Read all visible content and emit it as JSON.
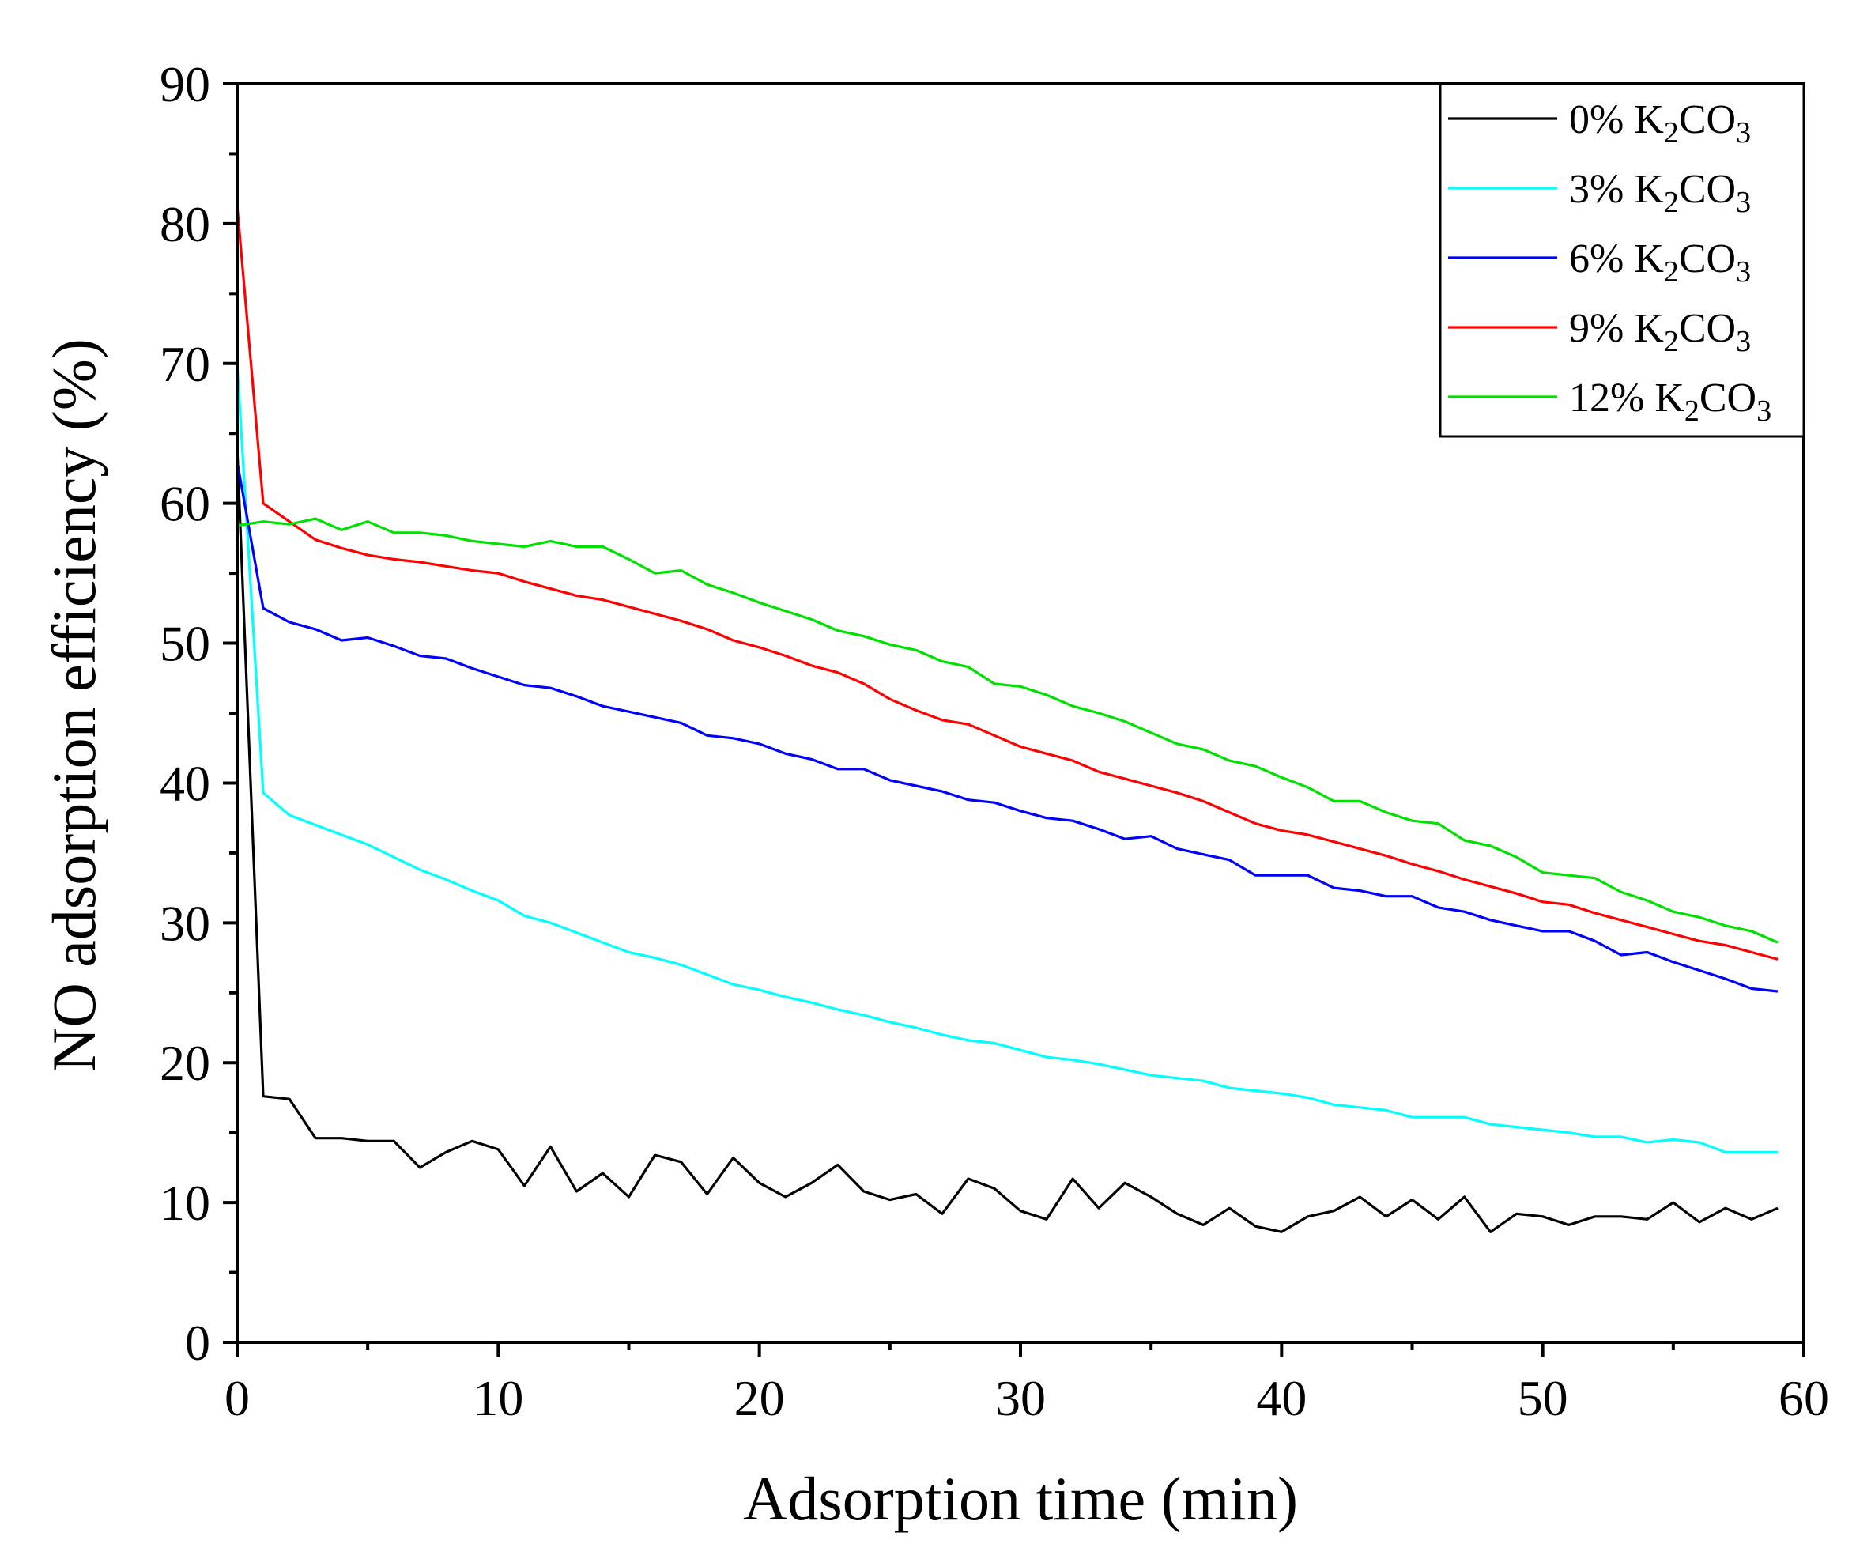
{
  "chart_data": {
    "type": "line",
    "title": "",
    "xlabel": "Adsorption time (min)",
    "ylabel": "NO adsorption efficiency (%)",
    "xlim": [
      0,
      60
    ],
    "ylim": [
      0,
      90
    ],
    "xticks": [
      0,
      10,
      20,
      30,
      40,
      50,
      60
    ],
    "yticks": [
      0,
      10,
      20,
      30,
      40,
      50,
      60,
      70,
      80,
      90
    ],
    "grid": false,
    "legend_position": "top-right",
    "x": [
      0,
      1,
      2,
      3,
      4,
      5,
      6,
      7,
      8,
      9,
      10,
      11,
      12,
      13,
      14,
      15,
      16,
      17,
      18,
      19,
      20,
      21,
      22,
      23,
      24,
      25,
      26,
      27,
      28,
      29,
      30,
      31,
      32,
      33,
      34,
      35,
      36,
      37,
      38,
      39,
      40,
      41,
      42,
      43,
      44,
      45,
      46,
      47,
      48,
      49,
      50,
      51,
      52,
      53,
      54,
      55,
      56,
      57,
      58,
      59
    ],
    "series": [
      {
        "name": "0% K2CO3",
        "label_parts": {
          "pre": "0% K",
          "sub1": "2",
          "mid": "CO",
          "sub2": "3"
        },
        "color": "#000000",
        "values": [
          64.0,
          17.6,
          17.4,
          14.6,
          14.6,
          14.4,
          14.4,
          12.5,
          13.6,
          14.4,
          13.8,
          11.2,
          14.0,
          10.8,
          12.1,
          10.4,
          13.4,
          12.9,
          10.6,
          13.2,
          11.4,
          10.4,
          11.4,
          12.7,
          10.8,
          10.2,
          10.6,
          9.2,
          11.7,
          11.0,
          9.4,
          8.8,
          11.7,
          9.6,
          11.4,
          10.4,
          9.2,
          8.4,
          9.6,
          8.3,
          7.9,
          9.0,
          9.4,
          10.4,
          9.0,
          10.2,
          8.8,
          10.4,
          7.9,
          9.2,
          9.0,
          8.4,
          9.0,
          9.0,
          8.8,
          10.0,
          8.6,
          9.6,
          8.8,
          9.6
        ]
      },
      {
        "name": "3% K2CO3",
        "label_parts": {
          "pre": "3% K",
          "sub1": "2",
          "mid": "CO",
          "sub2": "3"
        },
        "color": "#00ffff",
        "values": [
          70.0,
          39.3,
          37.7,
          37.0,
          36.3,
          35.6,
          34.7,
          33.8,
          33.1,
          32.3,
          31.6,
          30.5,
          30.0,
          29.3,
          28.6,
          27.9,
          27.5,
          27.0,
          26.3,
          25.6,
          25.2,
          24.7,
          24.3,
          23.8,
          23.4,
          22.9,
          22.5,
          22.0,
          21.6,
          21.4,
          20.9,
          20.4,
          20.2,
          19.9,
          19.5,
          19.1,
          18.9,
          18.7,
          18.2,
          18.0,
          17.8,
          17.5,
          17.0,
          16.8,
          16.6,
          16.1,
          16.1,
          16.1,
          15.6,
          15.4,
          15.2,
          15.0,
          14.7,
          14.7,
          14.3,
          14.5,
          14.3,
          13.6,
          13.6,
          13.6
        ]
      },
      {
        "name": "6% K2CO3",
        "label_parts": {
          "pre": "6% K",
          "sub1": "2",
          "mid": "CO",
          "sub2": "3"
        },
        "color": "#0000ff",
        "values": [
          63.0,
          52.5,
          51.5,
          51.0,
          50.2,
          50.4,
          49.8,
          49.1,
          48.9,
          48.2,
          47.6,
          47.0,
          46.8,
          46.2,
          45.5,
          45.1,
          44.7,
          44.3,
          43.4,
          43.2,
          42.8,
          42.1,
          41.7,
          41.0,
          41.0,
          40.2,
          39.8,
          39.4,
          38.8,
          38.6,
          38.0,
          37.5,
          37.3,
          36.7,
          36.0,
          36.2,
          35.3,
          34.9,
          34.5,
          33.4,
          33.4,
          33.4,
          32.5,
          32.3,
          31.9,
          31.9,
          31.1,
          30.8,
          30.2,
          29.8,
          29.4,
          29.4,
          28.7,
          27.7,
          27.9,
          27.2,
          26.6,
          26.0,
          25.3,
          25.1
        ]
      },
      {
        "name": "9% K2CO3",
        "label_parts": {
          "pre": "9% K",
          "sub1": "2",
          "mid": "CO",
          "sub2": "3"
        },
        "color": "#ff0000",
        "values": [
          81.3,
          60.0,
          58.7,
          57.4,
          56.8,
          56.3,
          56.0,
          55.8,
          55.5,
          55.2,
          55.0,
          54.4,
          53.9,
          53.4,
          53.1,
          52.6,
          52.1,
          51.6,
          51.0,
          50.2,
          49.7,
          49.1,
          48.4,
          47.9,
          47.1,
          46.0,
          45.2,
          44.5,
          44.2,
          43.4,
          42.6,
          42.1,
          41.6,
          40.8,
          40.3,
          39.8,
          39.3,
          38.7,
          37.9,
          37.1,
          36.6,
          36.3,
          35.8,
          35.3,
          34.8,
          34.2,
          33.7,
          33.1,
          32.6,
          32.1,
          31.5,
          31.3,
          30.7,
          30.2,
          29.7,
          29.2,
          28.7,
          28.4,
          27.9,
          27.4
        ]
      },
      {
        "name": "12% K2CO3",
        "label_parts": {
          "pre": "12% K",
          "sub1": "2",
          "mid": "CO",
          "sub2": "3"
        },
        "color": "#00e000",
        "values": [
          58.4,
          58.7,
          58.5,
          58.9,
          58.1,
          58.7,
          57.9,
          57.9,
          57.7,
          57.3,
          57.1,
          56.9,
          57.3,
          56.9,
          56.9,
          56.0,
          55.0,
          55.2,
          54.2,
          53.6,
          52.9,
          52.3,
          51.7,
          50.9,
          50.5,
          49.9,
          49.5,
          48.7,
          48.3,
          47.1,
          46.9,
          46.3,
          45.5,
          45.0,
          44.4,
          43.6,
          42.8,
          42.4,
          41.6,
          41.2,
          40.4,
          39.7,
          38.7,
          38.7,
          37.9,
          37.3,
          37.1,
          35.9,
          35.5,
          34.7,
          33.6,
          33.4,
          33.2,
          32.2,
          31.6,
          30.8,
          30.4,
          29.8,
          29.4,
          28.6
        ]
      }
    ]
  }
}
